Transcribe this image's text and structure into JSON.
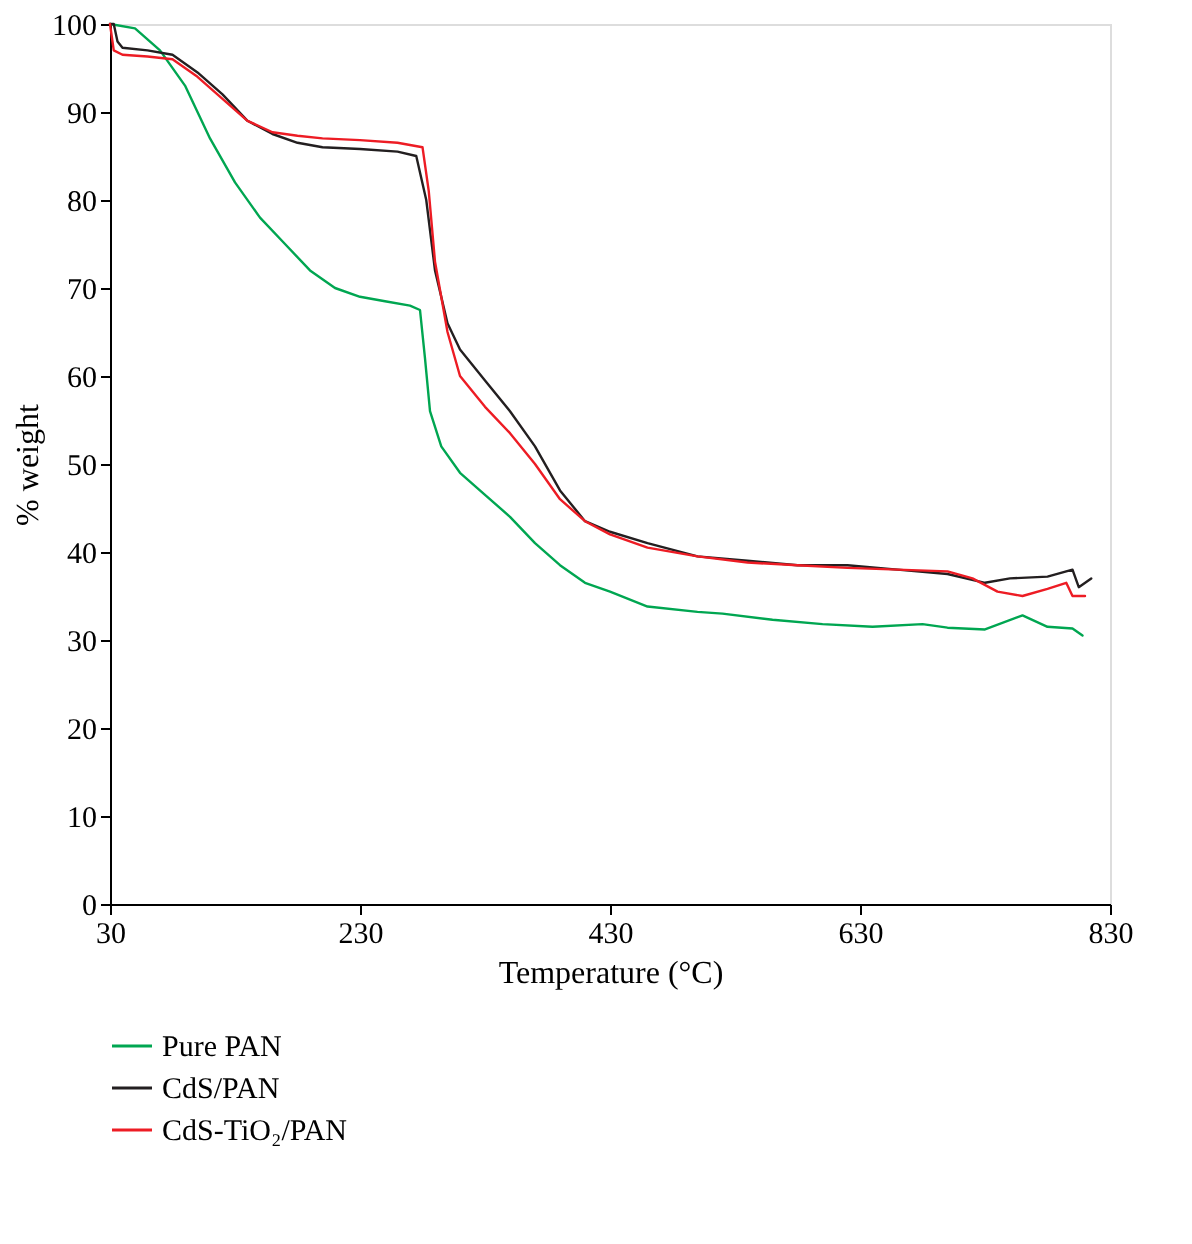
{
  "chart_data": {
    "type": "line",
    "xlabel": "Temperature (°C)",
    "ylabel": "% weight",
    "xlim": [
      30,
      830
    ],
    "xticks": [
      30,
      230,
      430,
      630,
      830
    ],
    "ylim": [
      0,
      100
    ],
    "yticks": [
      0,
      10,
      20,
      30,
      40,
      50,
      60,
      70,
      80,
      90,
      100
    ],
    "grid": false,
    "legend": "bottom",
    "marker": "none",
    "line_style": "solid",
    "series": [
      {
        "name": "Pure PAN",
        "color": "#00a651",
        "x": [
          30,
          50,
          70,
          90,
          110,
          130,
          150,
          170,
          190,
          210,
          230,
          250,
          270,
          278,
          282,
          286,
          295,
          310,
          330,
          350,
          370,
          390,
          410,
          430,
          460,
          500,
          520,
          560,
          600,
          640,
          680,
          700,
          730,
          760,
          780,
          800,
          808
        ],
        "values": [
          100,
          99.5,
          97,
          93,
          87,
          82,
          78,
          75,
          72,
          70,
          69,
          68.5,
          68,
          67.5,
          62,
          56,
          52,
          49,
          46.5,
          44,
          41,
          38.5,
          36.5,
          35.5,
          33.8,
          33.2,
          33,
          32.3,
          31.8,
          31.5,
          31.8,
          31.4,
          31.2,
          32.8,
          31.5,
          31.3,
          30.5
        ]
      },
      {
        "name": "CdS/PAN",
        "color": "#231f20",
        "x": [
          30,
          33,
          36,
          40,
          60,
          80,
          100,
          120,
          140,
          160,
          180,
          200,
          230,
          260,
          275,
          283,
          290,
          300,
          310,
          330,
          350,
          370,
          390,
          410,
          430,
          460,
          500,
          540,
          580,
          620,
          660,
          700,
          730,
          750,
          780,
          800,
          805,
          815
        ],
        "values": [
          100,
          100,
          98,
          97.3,
          97,
          96.5,
          94.5,
          92,
          89,
          87.5,
          86.5,
          86,
          85.8,
          85.5,
          85,
          80,
          72,
          66,
          63,
          59.5,
          56,
          52,
          47,
          43.5,
          42.3,
          41,
          39.5,
          39,
          38.5,
          38.5,
          38,
          37.5,
          36.5,
          37,
          37.2,
          38,
          36,
          37
        ]
      },
      {
        "name": "CdS-TiO₂/PAN",
        "color": "#ed1c24",
        "x": [
          30,
          33,
          40,
          60,
          80,
          100,
          120,
          140,
          160,
          180,
          200,
          230,
          260,
          280,
          285,
          290,
          300,
          310,
          330,
          350,
          370,
          390,
          410,
          430,
          460,
          500,
          540,
          580,
          620,
          660,
          700,
          720,
          740,
          760,
          780,
          795,
          800,
          810
        ],
        "values": [
          100,
          97,
          96.5,
          96.3,
          96,
          94,
          91.5,
          89,
          87.7,
          87.3,
          87,
          86.8,
          86.5,
          86,
          81,
          73,
          65,
          60,
          56.5,
          53.5,
          50,
          46,
          43.5,
          42,
          40.5,
          39.5,
          38.8,
          38.5,
          38.2,
          38,
          37.8,
          37,
          35.5,
          35,
          35.8,
          36.5,
          35,
          35
        ]
      }
    ]
  }
}
